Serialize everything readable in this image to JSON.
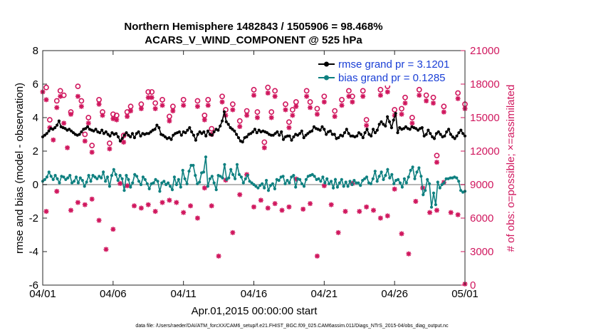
{
  "chart_data": {
    "type": "line",
    "title_line1": "Northern Hemisphere 1482843 / 1505906 = 98.468%",
    "title_line2": "ACARS_V_WIND_COMPONENT @ 525 hPa",
    "xlabel": "Apr.01,2015 00:00:00 start",
    "ylabel_left": "rmse and bias (model - observation)",
    "ylabel_right": "# of obs: o=possible; ×=assimilated",
    "xlim": [
      0,
      30
    ],
    "ylim_left": [
      -6,
      8
    ],
    "ylim_right": [
      0,
      21000
    ],
    "x_ticks": [
      {
        "pos": 0,
        "label": "04/01"
      },
      {
        "pos": 5,
        "label": "04/06"
      },
      {
        "pos": 10,
        "label": "04/11"
      },
      {
        "pos": 15,
        "label": "04/16"
      },
      {
        "pos": 20,
        "label": "04/21"
      },
      {
        "pos": 25,
        "label": "04/26"
      },
      {
        "pos": 30,
        "label": "05/01"
      }
    ],
    "y_ticks_left": [
      "-6",
      "-4",
      "-2",
      "0",
      "2",
      "4",
      "6",
      "8"
    ],
    "y_ticks_right": [
      "0",
      "3000",
      "6000",
      "9000",
      "12000",
      "15000",
      "18000",
      "21000"
    ],
    "legend": [
      {
        "name": "rmse grand pr = 3.1201",
        "color": "#000000"
      },
      {
        "name": "bias grand pr = 0.1285",
        "color": "#0e8080"
      }
    ],
    "zero_line": 0,
    "series": [
      {
        "name": "rmse",
        "color": "#000000",
        "values": [
          2.85,
          2.95,
          3.05,
          3.2,
          3.35,
          3.3,
          3.4,
          3.55,
          3.8,
          3.45,
          3.4,
          3.35,
          3.25,
          3.3,
          3.2,
          3.1,
          3.0,
          2.95,
          3.0,
          3.15,
          3.3,
          3.35,
          3.45,
          3.3,
          3.25,
          3.2,
          3.3,
          3.15,
          3.1,
          3.25,
          3.05,
          3.15,
          3.0,
          2.9,
          3.1,
          3.0,
          3.05,
          2.85,
          2.6,
          2.75,
          2.95,
          3.1,
          2.95,
          2.85,
          3.05,
          2.8,
          3.05,
          3.15,
          2.9,
          3.05,
          3.0,
          3.05,
          3.05,
          3.15,
          3.25,
          3.3,
          3.55,
          3.4,
          3.0,
          2.95,
          2.85,
          2.75,
          2.8,
          2.7,
          2.95,
          3.05,
          3.1,
          3.15,
          2.95,
          3.15,
          3.1,
          3.25,
          3.4,
          3.15,
          2.95,
          2.65,
          3.0,
          3.15,
          3.05,
          3.15,
          2.9,
          3.2,
          3.0,
          2.95,
          3.15,
          3.3,
          3.25,
          3.5,
          3.8,
          4.35,
          3.75,
          3.6,
          3.4,
          3.3,
          3.2,
          3.0,
          2.8,
          2.6,
          2.55,
          2.8,
          2.85,
          3.0,
          3.05,
          3.15,
          3.3,
          3.1,
          3.25,
          3.15,
          3.2,
          3.15,
          3.1,
          3.0,
          2.95,
          2.95,
          3.05,
          3.15,
          2.95,
          3.15,
          2.7,
          2.85,
          2.9,
          2.9,
          2.65,
          2.85,
          3.0,
          2.95,
          3.05,
          3.2,
          2.8,
          2.95,
          3.05,
          3.15,
          3.2,
          3.45,
          3.35,
          3.3,
          3.25,
          3.45,
          3.3,
          3.0,
          3.15,
          3.2,
          3.0,
          3.0,
          2.75,
          2.8,
          2.95,
          2.9,
          3.1,
          3.3,
          3.05,
          2.9,
          2.9,
          2.85,
          2.9,
          3.1,
          3.0,
          2.8,
          3.1,
          3.3,
          3.0,
          2.9,
          3.3,
          3.1,
          3.25,
          3.6,
          3.75,
          3.6,
          3.5,
          4.05,
          3.75,
          3.4,
          3.85,
          4.25,
          3.1,
          3.4,
          3.3,
          3.35,
          3.45,
          3.35,
          3.3,
          3.45,
          3.4,
          3.35,
          3.25,
          3.35,
          3.4,
          2.9,
          3.0,
          3.25,
          3.05,
          2.85,
          2.75,
          3.05,
          3.15,
          3.0,
          2.85,
          2.9,
          3.15,
          3.3,
          3.0,
          2.85,
          2.75,
          2.9,
          3.1,
          3.25,
          3.05,
          2.9
        ]
      },
      {
        "name": "bias",
        "color": "#0e8080",
        "values": [
          0.2,
          0.3,
          0.45,
          0.75,
          0.5,
          0.3,
          0.55,
          0.35,
          0.1,
          0.5,
          0.45,
          0.3,
          0.4,
          0.55,
          0.1,
          0.2,
          0.45,
          0.1,
          0.4,
          0.25,
          -0.1,
          0.15,
          0.55,
          0.2,
          0.55,
          0.45,
          0.35,
          0.5,
          0.4,
          0.75,
          0.2,
          0.45,
          -0.1,
          0.55,
          0.9,
          0.6,
          0.25,
          0.55,
          0.35,
          -0.35,
          0.55,
          0.3,
          -0.15,
          0.1,
          0.6,
          0.5,
          0.2,
          0.0,
          0.45,
          0.3,
          0.05,
          -0.25,
          0.05,
          0.1,
          0.3,
          0.2,
          -0.4,
          0.1,
          0.2,
          0.0,
          0.1,
          -0.1,
          -0.3,
          0.45,
          0.0,
          0.3,
          -0.15,
          0.85,
          0.35,
          0.05,
          0.8,
          1.15,
          1.15,
          0.55,
          0.05,
          0.15,
          0.7,
          0.75,
          1.65,
          -0.1,
          0.35,
          0.5,
          0.1,
          -0.3,
          0.55,
          0.5,
          0.4,
          1.2,
          0.3,
          0.4,
          0.9,
          0.6,
          0.35,
          1.2,
          0.6,
          0.45,
          0.1,
          0.35,
          0.55,
          0.2,
          0.1,
          0.0,
          -0.1,
          -0.2,
          -0.05,
          0.05,
          -0.2,
          0.25,
          -0.35,
          -0.05,
          0.05,
          -0.25,
          0.3,
          0.25,
          0.45,
          0.5,
          0.05,
          0.25,
          0.1,
          0.45,
          0.55,
          -0.15,
          0.35,
          0.3,
          0.05,
          -0.1,
          0.3,
          0.5,
          0.55,
          0.6,
          0.5,
          0.3,
          0.35,
          0.2,
          0.45,
          0.1,
          0.35,
          0.05,
          0.2,
          -0.2,
          0.3,
          -0.15,
          0.1,
          0.3,
          -0.1,
          0.15,
          -0.1,
          0.2,
          0.0,
          0.25,
          0.1,
          0.1,
          -0.05,
          0.25,
          0.35,
          0.45,
          0.1,
          0.05,
          0.35,
          0.8,
          0.2,
          0.5,
          0.75,
          0.3,
          0.55,
          0.9,
          0.4,
          0.6,
          0.05,
          0.25,
          0.3,
          0.1,
          -0.15,
          0.35,
          0.1,
          0.45,
          0.85,
          1.05,
          0.35,
          0.75,
          1.0,
          0.5,
          -0.6,
          -0.35,
          0.3,
          0.05,
          -1.35,
          -0.5,
          -1.2,
          0.15,
          -0.2,
          0.0,
          0.1,
          0.35,
          0.35,
          0.4,
          0.4,
          0.45,
          0.4,
          0.2,
          -0.35,
          -0.45,
          -0.4
        ]
      }
    ],
    "obs_possible": [
      [
        0.25,
        17700
      ],
      [
        0.5,
        14800
      ],
      [
        1.0,
        16500
      ],
      [
        1.25,
        17400
      ],
      [
        1.5,
        17000
      ],
      [
        2.0,
        15500
      ],
      [
        2.5,
        17800
      ],
      [
        2.75,
        16500
      ],
      [
        3.0,
        13500
      ],
      [
        3.25,
        15000
      ],
      [
        3.5,
        12500
      ],
      [
        4.0,
        16600
      ],
      [
        4.25,
        15500
      ],
      [
        4.75,
        12700
      ],
      [
        5.0,
        15300
      ],
      [
        5.25,
        15200
      ],
      [
        5.75,
        13400
      ],
      [
        6.0,
        15500
      ],
      [
        6.25,
        16000
      ],
      [
        7.0,
        16200
      ],
      [
        7.5,
        17300
      ],
      [
        7.75,
        17300
      ],
      [
        8.0,
        16300
      ],
      [
        8.5,
        16600
      ],
      [
        9.0,
        15100
      ],
      [
        9.25,
        16000
      ],
      [
        10.0,
        16600
      ],
      [
        11.0,
        16500
      ],
      [
        11.5,
        15200
      ],
      [
        11.75,
        16600
      ],
      [
        12.0,
        14000
      ],
      [
        12.75,
        16900
      ],
      [
        13.0,
        15700
      ],
      [
        13.5,
        16200
      ],
      [
        14.0,
        14700
      ],
      [
        14.5,
        15600
      ],
      [
        15.0,
        17500
      ],
      [
        15.25,
        15500
      ],
      [
        15.75,
        12800
      ],
      [
        16.0,
        17700
      ],
      [
        16.25,
        15500
      ],
      [
        16.5,
        17400
      ],
      [
        17.25,
        16200
      ],
      [
        17.5,
        14600
      ],
      [
        17.75,
        15700
      ],
      [
        18.0,
        16400
      ],
      [
        18.75,
        17400
      ],
      [
        19.0,
        16400
      ],
      [
        19.5,
        15800
      ],
      [
        20.0,
        16900
      ],
      [
        20.75,
        15600
      ],
      [
        21.25,
        16600
      ],
      [
        21.75,
        17400
      ],
      [
        22.0,
        16900
      ],
      [
        22.75,
        17400
      ],
      [
        23.0,
        14800
      ],
      [
        24.0,
        17500
      ],
      [
        24.5,
        17800
      ],
      [
        25.0,
        15700
      ],
      [
        25.5,
        15800
      ],
      [
        25.75,
        16800
      ],
      [
        26.25,
        15000
      ],
      [
        26.75,
        17500
      ],
      [
        27.25,
        17000
      ],
      [
        27.75,
        16800
      ],
      [
        28.0,
        11600
      ],
      [
        28.5,
        16000
      ],
      [
        29.5,
        17200
      ],
      [
        30.0,
        16200
      ]
    ],
    "obs_assimilated": [
      [
        0.0,
        17300
      ],
      [
        0.25,
        16600
      ],
      [
        0.5,
        14100
      ],
      [
        0.75,
        13000
      ],
      [
        1.0,
        15900
      ],
      [
        1.25,
        16900
      ],
      [
        1.5,
        14500
      ],
      [
        1.75,
        12300
      ],
      [
        2.0,
        15300
      ],
      [
        2.5,
        16900
      ],
      [
        2.75,
        16000
      ],
      [
        3.0,
        12900
      ],
      [
        3.25,
        14500
      ],
      [
        3.5,
        11900
      ],
      [
        4.0,
        16200
      ],
      [
        4.25,
        15200
      ],
      [
        4.75,
        12200
      ],
      [
        5.0,
        14900
      ],
      [
        5.25,
        14800
      ],
      [
        5.75,
        12800
      ],
      [
        6.0,
        15100
      ],
      [
        6.25,
        15600
      ],
      [
        7.0,
        15800
      ],
      [
        7.5,
        16800
      ],
      [
        7.75,
        16800
      ],
      [
        8.0,
        15800
      ],
      [
        8.5,
        16100
      ],
      [
        9.0,
        14700
      ],
      [
        9.25,
        15600
      ],
      [
        10.0,
        16100
      ],
      [
        11.0,
        16000
      ],
      [
        11.5,
        14800
      ],
      [
        11.75,
        16100
      ],
      [
        12.0,
        13500
      ],
      [
        12.75,
        16400
      ],
      [
        13.0,
        15200
      ],
      [
        13.5,
        15700
      ],
      [
        14.0,
        14200
      ],
      [
        14.5,
        15200
      ],
      [
        15.0,
        17000
      ],
      [
        15.25,
        15000
      ],
      [
        15.75,
        12300
      ],
      [
        16.0,
        17200
      ],
      [
        16.25,
        15000
      ],
      [
        16.5,
        16900
      ],
      [
        17.25,
        15700
      ],
      [
        17.5,
        14100
      ],
      [
        17.75,
        15200
      ],
      [
        18.0,
        16000
      ],
      [
        18.75,
        16900
      ],
      [
        19.0,
        15900
      ],
      [
        19.5,
        15300
      ],
      [
        20.0,
        16400
      ],
      [
        20.75,
        15100
      ],
      [
        21.25,
        16100
      ],
      [
        21.75,
        16900
      ],
      [
        22.0,
        16400
      ],
      [
        22.75,
        16900
      ],
      [
        23.0,
        14300
      ],
      [
        24.0,
        17000
      ],
      [
        24.5,
        17300
      ],
      [
        25.0,
        15200
      ],
      [
        25.5,
        15300
      ],
      [
        25.75,
        16300
      ],
      [
        26.25,
        14500
      ],
      [
        26.75,
        17000
      ],
      [
        27.25,
        16500
      ],
      [
        27.75,
        16300
      ],
      [
        28.0,
        11000
      ],
      [
        28.5,
        15500
      ],
      [
        29.5,
        16700
      ],
      [
        30.0,
        15800
      ],
      [
        0.25,
        6600
      ],
      [
        1.0,
        8400
      ],
      [
        2.0,
        6700
      ],
      [
        2.5,
        7400
      ],
      [
        3.0,
        7200
      ],
      [
        3.5,
        7700
      ],
      [
        4.0,
        5800
      ],
      [
        4.5,
        3200
      ],
      [
        5.0,
        5000
      ],
      [
        5.5,
        9100
      ],
      [
        6.0,
        8900
      ],
      [
        6.5,
        7100
      ],
      [
        7.0,
        6900
      ],
      [
        7.5,
        7200
      ],
      [
        8.0,
        6600
      ],
      [
        8.5,
        7400
      ],
      [
        9.0,
        7600
      ],
      [
        9.5,
        7400
      ],
      [
        10.0,
        6500
      ],
      [
        10.5,
        7100
      ],
      [
        11.0,
        6000
      ],
      [
        11.5,
        8700
      ],
      [
        12.0,
        7100
      ],
      [
        12.5,
        2600
      ],
      [
        13.0,
        9400
      ],
      [
        13.5,
        4700
      ],
      [
        14.0,
        8100
      ],
      [
        14.5,
        9900
      ],
      [
        15.0,
        7000
      ],
      [
        15.5,
        7600
      ],
      [
        16.0,
        6900
      ],
      [
        16.5,
        7300
      ],
      [
        17.0,
        6700
      ],
      [
        17.5,
        7000
      ],
      [
        18.0,
        9500
      ],
      [
        18.5,
        6800
      ],
      [
        19.0,
        7300
      ],
      [
        19.5,
        2600
      ],
      [
        20.0,
        8900
      ],
      [
        20.5,
        7200
      ],
      [
        21.0,
        4700
      ],
      [
        21.5,
        6600
      ],
      [
        22.0,
        9100
      ],
      [
        22.5,
        6600
      ],
      [
        23.0,
        7000
      ],
      [
        23.5,
        6700
      ],
      [
        24.0,
        6000
      ],
      [
        24.5,
        6200
      ],
      [
        25.0,
        8600
      ],
      [
        25.5,
        4600
      ],
      [
        26.0,
        2800
      ],
      [
        26.5,
        7500
      ],
      [
        27.0,
        8700
      ],
      [
        27.5,
        6500
      ],
      [
        28.0,
        6700
      ],
      [
        28.5,
        9200
      ],
      [
        29.0,
        6500
      ],
      [
        29.5,
        6300
      ],
      [
        30.0,
        100
      ]
    ]
  },
  "footer": {
    "datafile": "data file: /Users/raeder/DAI/ATM_forcXX/CAM6_setup/f.e21.FHIST_BGC.f09_025.CAM6assim.011/Diags_NTrS_2015-04/obs_diag_output.nc"
  },
  "colors": {
    "rmse": "#000000",
    "bias": "#0e8080",
    "obs": "#d0175e",
    "legend_text": "#1a3fd6",
    "zero_line": "#b8b8b8"
  }
}
